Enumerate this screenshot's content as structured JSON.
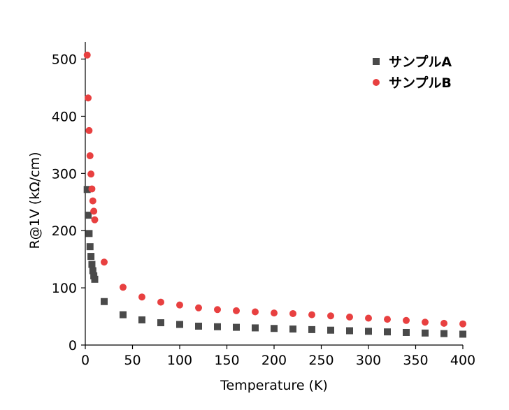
{
  "chart_data": {
    "type": "scatter",
    "xlabel": "Temperature (K)",
    "ylabel": "R@1V (kΩ/cm)",
    "xlim": [
      0,
      400
    ],
    "ylim": [
      0,
      530
    ],
    "xticks": [
      0,
      50,
      100,
      150,
      200,
      250,
      300,
      350,
      400
    ],
    "yticks": [
      0,
      100,
      200,
      300,
      400,
      500
    ],
    "grid": false,
    "legend_position": "top-right",
    "series": [
      {
        "name": "サンプルA",
        "marker": "square",
        "color": "#4a4a4a",
        "x": [
          2,
          3,
          4,
          5,
          6,
          7,
          8,
          9,
          10,
          20,
          40,
          60,
          80,
          100,
          120,
          140,
          160,
          180,
          200,
          220,
          240,
          260,
          280,
          300,
          320,
          340,
          360,
          380,
          400
        ],
        "y": [
          272,
          227,
          195,
          172,
          155,
          141,
          130,
          121,
          115,
          76,
          53,
          44,
          39,
          36,
          33,
          32,
          31,
          30,
          29,
          28,
          27,
          26,
          25,
          24,
          23,
          22,
          21,
          20,
          19
        ]
      },
      {
        "name": "サンプルB",
        "marker": "circle",
        "color": "#e84040",
        "x": [
          2,
          3,
          4,
          5,
          6,
          7,
          8,
          9,
          10,
          20,
          40,
          60,
          80,
          100,
          120,
          140,
          160,
          180,
          200,
          220,
          240,
          260,
          280,
          300,
          320,
          340,
          360,
          380,
          400
        ],
        "y": [
          507,
          432,
          375,
          331,
          299,
          273,
          252,
          234,
          219,
          145,
          101,
          84,
          75,
          70,
          65,
          62,
          60,
          58,
          56,
          55,
          53,
          51,
          49,
          47,
          45,
          43,
          40,
          38,
          37
        ]
      }
    ]
  }
}
